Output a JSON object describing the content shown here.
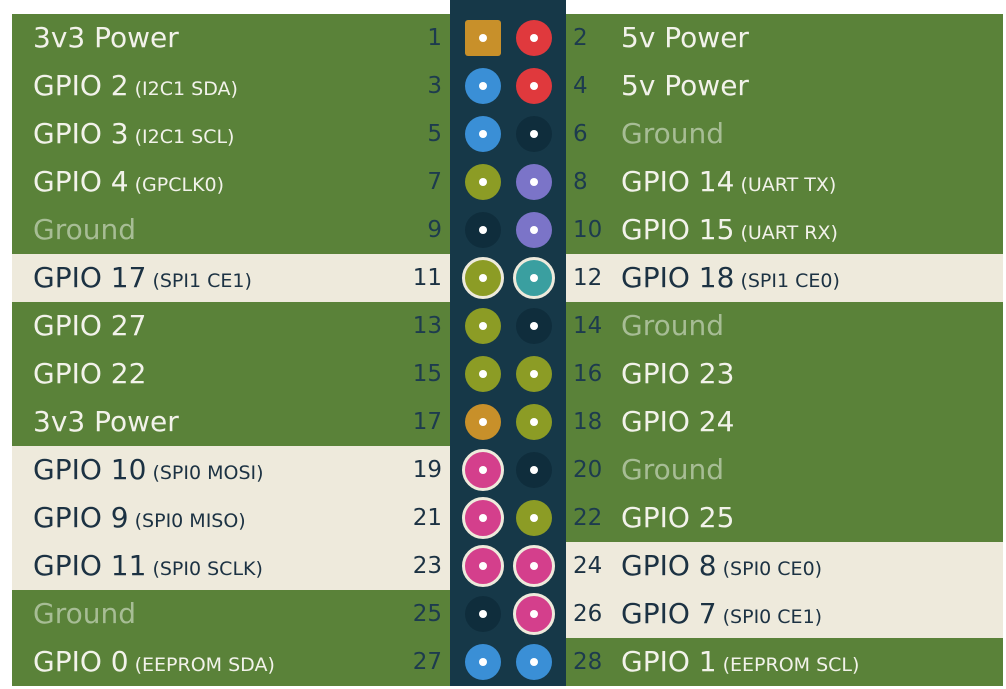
{
  "colors": {
    "row_bg": "#5a8239",
    "highlight_bg": "#eeeadc",
    "header_strip": "#163848",
    "power_3v3": "#c8902a",
    "power_5v": "#e0393d",
    "ground": "#0f2d3c",
    "gpio": "#8c9c25",
    "i2c": "#3a8fd6",
    "uart": "#7b74c8",
    "spi": "#d43f8c",
    "gpio_special": "#3a9fa0"
  },
  "rows": [
    {
      "left": {
        "pin": "1",
        "name": "3v3 Power",
        "sub": "",
        "type": "power_3v3",
        "shape": "square",
        "dim": false,
        "highlight": false
      },
      "right": {
        "pin": "2",
        "name": "5v Power",
        "sub": "",
        "type": "power_5v",
        "dim": false,
        "highlight": false
      }
    },
    {
      "left": {
        "pin": "3",
        "name": "GPIO 2",
        "sub": "(I2C1 SDA)",
        "type": "i2c",
        "dim": false,
        "highlight": false
      },
      "right": {
        "pin": "4",
        "name": "5v Power",
        "sub": "",
        "type": "power_5v",
        "dim": false,
        "highlight": false
      }
    },
    {
      "left": {
        "pin": "5",
        "name": "GPIO 3",
        "sub": "(I2C1 SCL)",
        "type": "i2c",
        "dim": false,
        "highlight": false
      },
      "right": {
        "pin": "6",
        "name": "Ground",
        "sub": "",
        "type": "ground",
        "dim": true,
        "highlight": false
      }
    },
    {
      "left": {
        "pin": "7",
        "name": "GPIO 4",
        "sub": "(GPCLK0)",
        "type": "gpio",
        "dim": false,
        "highlight": false
      },
      "right": {
        "pin": "8",
        "name": "GPIO 14",
        "sub": "(UART TX)",
        "type": "uart",
        "dim": false,
        "highlight": false
      }
    },
    {
      "left": {
        "pin": "9",
        "name": "Ground",
        "sub": "",
        "type": "ground",
        "dim": true,
        "highlight": false
      },
      "right": {
        "pin": "10",
        "name": "GPIO 15",
        "sub": "(UART RX)",
        "type": "uart",
        "dim": false,
        "highlight": false
      }
    },
    {
      "left": {
        "pin": "11",
        "name": "GPIO 17",
        "sub": "(SPI1 CE1)",
        "type": "gpio",
        "dim": false,
        "highlight": true
      },
      "right": {
        "pin": "12",
        "name": "GPIO 18",
        "sub": "(SPI1 CE0)",
        "type": "gpio_special",
        "dim": false,
        "highlight": true
      }
    },
    {
      "left": {
        "pin": "13",
        "name": "GPIO 27",
        "sub": "",
        "type": "gpio",
        "dim": false,
        "highlight": false
      },
      "right": {
        "pin": "14",
        "name": "Ground",
        "sub": "",
        "type": "ground",
        "dim": true,
        "highlight": false
      }
    },
    {
      "left": {
        "pin": "15",
        "name": "GPIO 22",
        "sub": "",
        "type": "gpio",
        "dim": false,
        "highlight": false
      },
      "right": {
        "pin": "16",
        "name": "GPIO 23",
        "sub": "",
        "type": "gpio",
        "dim": false,
        "highlight": false
      }
    },
    {
      "left": {
        "pin": "17",
        "name": "3v3 Power",
        "sub": "",
        "type": "power_3v3",
        "dim": false,
        "highlight": false
      },
      "right": {
        "pin": "18",
        "name": "GPIO 24",
        "sub": "",
        "type": "gpio",
        "dim": false,
        "highlight": false
      }
    },
    {
      "left": {
        "pin": "19",
        "name": "GPIO 10",
        "sub": "(SPI0 MOSI)",
        "type": "spi",
        "dim": false,
        "highlight": true
      },
      "right": {
        "pin": "20",
        "name": "Ground",
        "sub": "",
        "type": "ground",
        "dim": true,
        "highlight": false
      }
    },
    {
      "left": {
        "pin": "21",
        "name": "GPIO 9",
        "sub": "(SPI0 MISO)",
        "type": "spi",
        "dim": false,
        "highlight": true
      },
      "right": {
        "pin": "22",
        "name": "GPIO 25",
        "sub": "",
        "type": "gpio",
        "dim": false,
        "highlight": false
      }
    },
    {
      "left": {
        "pin": "23",
        "name": "GPIO 11",
        "sub": "(SPI0 SCLK)",
        "type": "spi",
        "dim": false,
        "highlight": true
      },
      "right": {
        "pin": "24",
        "name": "GPIO 8",
        "sub": "(SPI0 CE0)",
        "type": "spi",
        "dim": false,
        "highlight": true
      }
    },
    {
      "left": {
        "pin": "25",
        "name": "Ground",
        "sub": "",
        "type": "ground",
        "dim": true,
        "highlight": false
      },
      "right": {
        "pin": "26",
        "name": "GPIO 7",
        "sub": "(SPI0 CE1)",
        "type": "spi",
        "dim": false,
        "highlight": true
      }
    },
    {
      "left": {
        "pin": "27",
        "name": "GPIO 0",
        "sub": "(EEPROM SDA)",
        "type": "i2c",
        "dim": false,
        "highlight": false
      },
      "right": {
        "pin": "28",
        "name": "GPIO 1",
        "sub": "(EEPROM SCL)",
        "type": "i2c",
        "dim": false,
        "highlight": false
      }
    }
  ]
}
